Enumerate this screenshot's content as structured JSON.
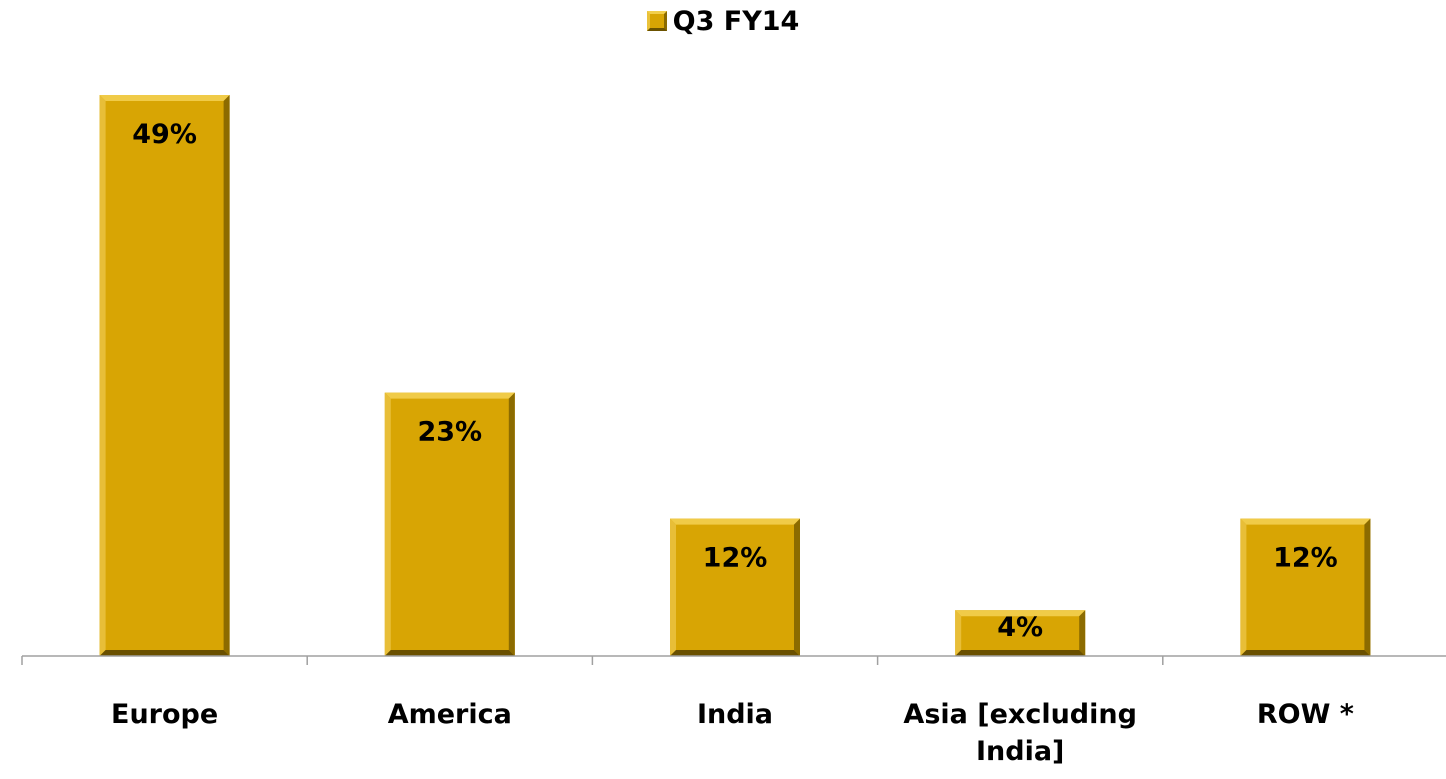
{
  "colors": {
    "bar_face": "#d8a504",
    "bar_top": "#f0cb48",
    "bar_left": "#e8be38",
    "bar_right": "#8c6b00",
    "bar_bottom": "#6a5000",
    "axis": "#a0a0a0",
    "text": "#000000"
  },
  "chart_data": {
    "type": "bar",
    "title": "",
    "xlabel": "",
    "ylabel": "",
    "legend": {
      "position": "top-center",
      "entries": [
        "Q3 FY14"
      ]
    },
    "grid": false,
    "ylim": [
      0,
      50
    ],
    "categories": [
      "Europe",
      "America",
      "India",
      "Asia [excluding India]",
      "ROW *"
    ],
    "category_lines": [
      [
        "Europe"
      ],
      [
        "America"
      ],
      [
        "India"
      ],
      [
        "Asia [excluding",
        "India]"
      ],
      [
        "ROW *"
      ]
    ],
    "series": [
      {
        "name": "Q3 FY14",
        "values": [
          49,
          23,
          12,
          4,
          12
        ],
        "data_labels": [
          "49%",
          "23%",
          "12%",
          "4%",
          "12%"
        ]
      }
    ]
  }
}
